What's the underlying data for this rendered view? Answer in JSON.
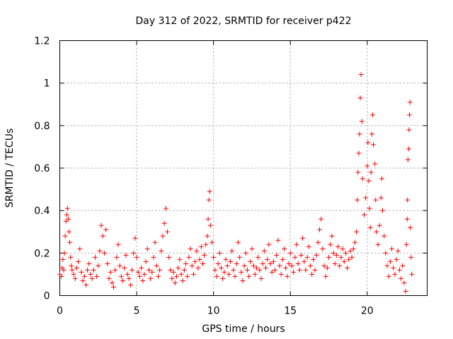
{
  "chart_data": {
    "type": "scatter",
    "title": "Day 312 of 2022, SRMTID for receiver p422",
    "xlabel": "GPS time / hours",
    "ylabel": "SRMTID / TECUs",
    "xlim": [
      0,
      23.9
    ],
    "ylim": [
      0,
      1.2
    ],
    "xticks": [
      0,
      5,
      10,
      15,
      20
    ],
    "xtick_labels": [
      "0",
      "5",
      "10",
      "15",
      "20"
    ],
    "yticks": [
      0,
      0.2,
      0.4,
      0.6,
      0.8,
      1.0,
      1.2
    ],
    "ytick_labels": [
      "0",
      "0.2",
      "0.4",
      "0.6",
      "0.8",
      "1",
      "1.2"
    ],
    "grid": true,
    "marker": "+",
    "series": [
      {
        "name": "SRMTID",
        "color": "#ff0000",
        "points": [
          [
            0.0,
            0.1
          ],
          [
            0.1,
            0.09
          ],
          [
            0.15,
            0.13
          ],
          [
            0.2,
            0.17
          ],
          [
            0.25,
            0.12
          ],
          [
            0.3,
            0.2
          ],
          [
            0.35,
            0.28
          ],
          [
            0.4,
            0.35
          ],
          [
            0.45,
            0.38
          ],
          [
            0.5,
            0.41
          ],
          [
            0.55,
            0.36
          ],
          [
            0.6,
            0.3
          ],
          [
            0.65,
            0.25
          ],
          [
            0.7,
            0.18
          ],
          [
            0.75,
            0.14
          ],
          [
            0.8,
            0.12
          ],
          [
            0.9,
            0.1
          ],
          [
            1.0,
            0.08
          ],
          [
            1.1,
            0.13
          ],
          [
            1.2,
            0.16
          ],
          [
            1.3,
            0.22
          ],
          [
            1.4,
            0.11
          ],
          [
            1.5,
            0.07
          ],
          [
            1.6,
            0.09
          ],
          [
            1.7,
            0.05
          ],
          [
            1.8,
            0.12
          ],
          [
            1.9,
            0.15
          ],
          [
            2.0,
            0.1
          ],
          [
            2.1,
            0.08
          ],
          [
            2.2,
            0.12
          ],
          [
            2.3,
            0.18
          ],
          [
            2.4,
            0.09
          ],
          [
            2.5,
            0.14
          ],
          [
            2.6,
            0.21
          ],
          [
            2.7,
            0.33
          ],
          [
            2.8,
            0.28
          ],
          [
            2.9,
            0.2
          ],
          [
            3.0,
            0.31
          ],
          [
            3.1,
            0.15
          ],
          [
            3.2,
            0.08
          ],
          [
            3.3,
            0.11
          ],
          [
            3.4,
            0.06
          ],
          [
            3.5,
            0.04
          ],
          [
            3.6,
            0.12
          ],
          [
            3.7,
            0.18
          ],
          [
            3.8,
            0.24
          ],
          [
            3.9,
            0.14
          ],
          [
            4.0,
            0.09
          ],
          [
            4.1,
            0.07
          ],
          [
            4.2,
            0.13
          ],
          [
            4.3,
            0.19
          ],
          [
            4.4,
            0.1
          ],
          [
            4.5,
            0.08
          ],
          [
            4.6,
            0.05
          ],
          [
            4.7,
            0.12
          ],
          [
            4.8,
            0.2
          ],
          [
            4.9,
            0.27
          ],
          [
            5.0,
            0.18
          ],
          [
            5.1,
            0.11
          ],
          [
            5.2,
            0.09
          ],
          [
            5.3,
            0.13
          ],
          [
            5.4,
            0.07
          ],
          [
            5.5,
            0.1
          ],
          [
            5.6,
            0.16
          ],
          [
            5.7,
            0.22
          ],
          [
            5.8,
            0.12
          ],
          [
            5.9,
            0.08
          ],
          [
            6.0,
            0.11
          ],
          [
            6.1,
            0.18
          ],
          [
            6.2,
            0.25
          ],
          [
            6.3,
            0.14
          ],
          [
            6.4,
            0.09
          ],
          [
            6.5,
            0.12
          ],
          [
            6.6,
            0.21
          ],
          [
            6.7,
            0.28
          ],
          [
            6.8,
            0.34
          ],
          [
            6.9,
            0.41
          ],
          [
            7.0,
            0.3
          ],
          [
            7.1,
            0.18
          ],
          [
            7.2,
            0.12
          ],
          [
            7.3,
            0.08
          ],
          [
            7.4,
            0.11
          ],
          [
            7.5,
            0.06
          ],
          [
            7.6,
            0.09
          ],
          [
            7.7,
            0.13
          ],
          [
            7.8,
            0.17
          ],
          [
            7.9,
            0.1
          ],
          [
            8.0,
            0.07
          ],
          [
            8.1,
            0.12
          ],
          [
            8.2,
            0.15
          ],
          [
            8.3,
            0.09
          ],
          [
            8.4,
            0.18
          ],
          [
            8.5,
            0.22
          ],
          [
            8.6,
            0.14
          ],
          [
            8.7,
            0.1
          ],
          [
            8.8,
            0.16
          ],
          [
            8.9,
            0.21
          ],
          [
            9.0,
            0.13
          ],
          [
            9.1,
            0.17
          ],
          [
            9.2,
            0.23
          ],
          [
            9.3,
            0.15
          ],
          [
            9.4,
            0.19
          ],
          [
            9.5,
            0.24
          ],
          [
            9.6,
            0.28
          ],
          [
            9.65,
            0.36
          ],
          [
            9.7,
            0.45
          ],
          [
            9.75,
            0.49
          ],
          [
            9.8,
            0.33
          ],
          [
            9.9,
            0.25
          ],
          [
            10.0,
            0.18
          ],
          [
            10.1,
            0.12
          ],
          [
            10.2,
            0.09
          ],
          [
            10.3,
            0.15
          ],
          [
            10.4,
            0.2
          ],
          [
            10.5,
            0.13
          ],
          [
            10.6,
            0.08
          ],
          [
            10.7,
            0.11
          ],
          [
            10.8,
            0.17
          ],
          [
            10.9,
            0.14
          ],
          [
            11.0,
            0.1
          ],
          [
            11.1,
            0.16
          ],
          [
            11.2,
            0.21
          ],
          [
            11.3,
            0.12
          ],
          [
            11.4,
            0.09
          ],
          [
            11.5,
            0.15
          ],
          [
            11.6,
            0.25
          ],
          [
            11.7,
            0.18
          ],
          [
            11.8,
            0.11
          ],
          [
            11.9,
            0.07
          ],
          [
            12.0,
            0.14
          ],
          [
            12.1,
            0.2
          ],
          [
            12.2,
            0.12
          ],
          [
            12.3,
            0.09
          ],
          [
            12.4,
            0.16
          ],
          [
            12.5,
            0.22
          ],
          [
            12.6,
            0.14
          ],
          [
            12.7,
            0.1
          ],
          [
            12.8,
            0.13
          ],
          [
            12.9,
            0.18
          ],
          [
            13.0,
            0.12
          ],
          [
            13.1,
            0.08
          ],
          [
            13.2,
            0.15
          ],
          [
            13.3,
            0.21
          ],
          [
            13.4,
            0.13
          ],
          [
            13.5,
            0.17
          ],
          [
            13.6,
            0.24
          ],
          [
            13.7,
            0.15
          ],
          [
            13.8,
            0.11
          ],
          [
            13.9,
            0.16
          ],
          [
            14.0,
            0.12
          ],
          [
            14.1,
            0.19
          ],
          [
            14.2,
            0.26
          ],
          [
            14.3,
            0.14
          ],
          [
            14.4,
            0.1
          ],
          [
            14.5,
            0.17
          ],
          [
            14.6,
            0.22
          ],
          [
            14.7,
            0.13
          ],
          [
            14.8,
            0.09
          ],
          [
            14.9,
            0.15
          ],
          [
            15.0,
            0.2
          ],
          [
            15.1,
            0.14
          ],
          [
            15.2,
            0.11
          ],
          [
            15.3,
            0.18
          ],
          [
            15.4,
            0.24
          ],
          [
            15.5,
            0.15
          ],
          [
            15.6,
            0.12
          ],
          [
            15.7,
            0.19
          ],
          [
            15.8,
            0.27
          ],
          [
            15.9,
            0.16
          ],
          [
            16.0,
            0.12
          ],
          [
            16.1,
            0.18
          ],
          [
            16.2,
            0.23
          ],
          [
            16.3,
            0.14
          ],
          [
            16.4,
            0.1
          ],
          [
            16.5,
            0.17
          ],
          [
            16.6,
            0.12
          ],
          [
            16.7,
            0.19
          ],
          [
            16.8,
            0.25
          ],
          [
            16.9,
            0.31
          ],
          [
            17.0,
            0.36
          ],
          [
            17.1,
            0.22
          ],
          [
            17.2,
            0.14
          ],
          [
            17.3,
            0.09
          ],
          [
            17.4,
            0.13
          ],
          [
            17.5,
            0.18
          ],
          [
            17.6,
            0.24
          ],
          [
            17.7,
            0.28
          ],
          [
            17.8,
            0.2
          ],
          [
            17.9,
            0.15
          ],
          [
            18.0,
            0.19
          ],
          [
            18.1,
            0.23
          ],
          [
            18.2,
            0.14
          ],
          [
            18.3,
            0.18
          ],
          [
            18.4,
            0.22
          ],
          [
            18.5,
            0.16
          ],
          [
            18.6,
            0.2
          ],
          [
            18.7,
            0.13
          ],
          [
            18.8,
            0.17
          ],
          [
            18.9,
            0.21
          ],
          [
            19.0,
            0.18
          ],
          [
            19.1,
            0.22
          ],
          [
            19.2,
            0.25
          ],
          [
            19.3,
            0.3
          ],
          [
            19.35,
            0.45
          ],
          [
            19.4,
            0.58
          ],
          [
            19.45,
            0.67
          ],
          [
            19.5,
            0.76
          ],
          [
            19.55,
            0.93
          ],
          [
            19.6,
            1.04
          ],
          [
            19.65,
            0.82
          ],
          [
            19.7,
            0.55
          ],
          [
            19.8,
            0.38
          ],
          [
            19.9,
            0.46
          ],
          [
            20.0,
            0.61
          ],
          [
            20.05,
            0.72
          ],
          [
            20.1,
            0.54
          ],
          [
            20.15,
            0.41
          ],
          [
            20.2,
            0.32
          ],
          [
            20.25,
            0.58
          ],
          [
            20.3,
            0.76
          ],
          [
            20.35,
            0.85
          ],
          [
            20.4,
            0.71
          ],
          [
            20.5,
            0.62
          ],
          [
            20.55,
            0.45
          ],
          [
            20.6,
            0.3
          ],
          [
            20.7,
            0.24
          ],
          [
            20.8,
            0.33
          ],
          [
            20.9,
            0.46
          ],
          [
            20.95,
            0.55
          ],
          [
            21.0,
            0.4
          ],
          [
            21.1,
            0.28
          ],
          [
            21.2,
            0.2
          ],
          [
            21.3,
            0.14
          ],
          [
            21.4,
            0.09
          ],
          [
            21.5,
            0.16
          ],
          [
            21.6,
            0.22
          ],
          [
            21.7,
            0.13
          ],
          [
            21.8,
            0.1
          ],
          [
            21.9,
            0.17
          ],
          [
            22.0,
            0.21
          ],
          [
            22.1,
            0.12
          ],
          [
            22.2,
            0.08
          ],
          [
            22.3,
            0.14
          ],
          [
            22.4,
            0.06
          ],
          [
            22.5,
            0.02
          ],
          [
            22.55,
            0.24
          ],
          [
            22.6,
            0.36
          ],
          [
            22.62,
            0.45
          ],
          [
            22.65,
            0.64
          ],
          [
            22.7,
            0.69
          ],
          [
            22.72,
            0.78
          ],
          [
            22.75,
            0.85
          ],
          [
            22.78,
            0.91
          ],
          [
            22.8,
            0.32
          ],
          [
            22.85,
            0.18
          ],
          [
            22.9,
            0.1
          ]
        ]
      }
    ]
  }
}
